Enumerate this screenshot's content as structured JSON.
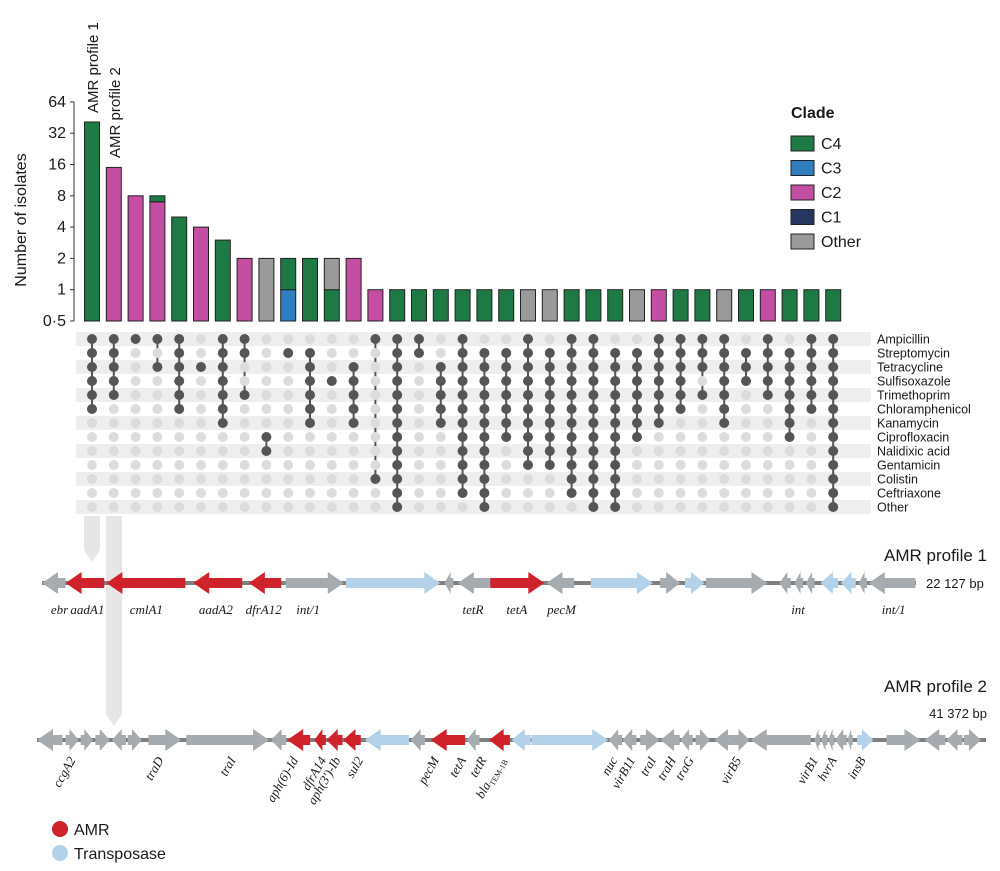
{
  "colors": {
    "C4": "#1e7a45",
    "C3": "#2f7fc0",
    "C2": "#c44fa2",
    "C1": "#263661",
    "Other": "#9a9a9a",
    "dot_on": "#555555",
    "dot_off": "#dcdcdc",
    "band": "#eeeeee",
    "amr": "#d0222b",
    "transposase": "#b3d2ea",
    "gene_gray": "#a6abaf",
    "backbone": "#7f7f7f"
  },
  "chart_data": {
    "type": "upset-bar",
    "ylabel": "Number of isolates",
    "y_scale": "log2",
    "ylim": [
      0.5,
      64
    ],
    "yticks": [
      "0·5",
      "1",
      "2",
      "4",
      "8",
      "16",
      "32",
      "64"
    ],
    "ytick_values": [
      0.5,
      1,
      2,
      4,
      8,
      16,
      32,
      64
    ],
    "profile_labels": [
      "AMR profile 1",
      "AMR profile 2"
    ],
    "categories": [
      "Ampicillin",
      "Streptomycin",
      "Tetracycline",
      "Sulfisoxazole",
      "Trimethoprim",
      "Chloramphenicol",
      "Kanamycin",
      "Ciprofloxacin",
      "Nalidixic acid",
      "Gentamicin",
      "Colistin",
      "Ceftriaxone",
      "Other"
    ],
    "bars": [
      {
        "segments": [
          [
            "C4",
            41
          ]
        ],
        "set": [
          0,
          1,
          2,
          3,
          4,
          5
        ]
      },
      {
        "segments": [
          [
            "C2",
            15
          ]
        ],
        "set": [
          0,
          1,
          2,
          3,
          4
        ]
      },
      {
        "segments": [
          [
            "C2",
            8
          ]
        ],
        "set": [
          0
        ]
      },
      {
        "segments": [
          [
            "C2",
            7
          ],
          [
            "C4",
            1
          ]
        ],
        "set": [
          0,
          2
        ]
      },
      {
        "segments": [
          [
            "C4",
            5
          ]
        ],
        "set": [
          0,
          1,
          2,
          3,
          4,
          5
        ]
      },
      {
        "segments": [
          [
            "C2",
            4
          ]
        ],
        "set": [
          2
        ]
      },
      {
        "segments": [
          [
            "C4",
            3
          ]
        ],
        "set": [
          0,
          1,
          2,
          3,
          4,
          5,
          6
        ]
      },
      {
        "segments": [
          [
            "C2",
            2
          ]
        ],
        "set": [
          0,
          1,
          4
        ]
      },
      {
        "segments": [
          [
            "Other",
            2
          ]
        ],
        "set": [
          7,
          8
        ]
      },
      {
        "segments": [
          [
            "C3",
            1
          ],
          [
            "C4",
            1
          ]
        ],
        "set": [
          1
        ]
      },
      {
        "segments": [
          [
            "C4",
            2
          ]
        ],
        "set": [
          1,
          2,
          3,
          4,
          5,
          6
        ]
      },
      {
        "segments": [
          [
            "C4",
            1
          ],
          [
            "Other",
            1
          ]
        ],
        "set": [
          3
        ]
      },
      {
        "segments": [
          [
            "C2",
            2
          ]
        ],
        "set": [
          2,
          3,
          4,
          5,
          6
        ]
      },
      {
        "segments": [
          [
            "C2",
            1
          ]
        ],
        "set": [
          0,
          10
        ]
      },
      {
        "segments": [
          [
            "C4",
            1
          ]
        ],
        "set": [
          0,
          1,
          2,
          3,
          4,
          5,
          6,
          7,
          8,
          9,
          10,
          11,
          12
        ]
      },
      {
        "segments": [
          [
            "C4",
            1
          ]
        ],
        "set": [
          0,
          1
        ]
      },
      {
        "segments": [
          [
            "C4",
            1
          ]
        ],
        "set": [
          2,
          3,
          4,
          5,
          6
        ]
      },
      {
        "segments": [
          [
            "C4",
            1
          ]
        ],
        "set": [
          0,
          1,
          2,
          3,
          4,
          5,
          6,
          7,
          8,
          9,
          10,
          11
        ]
      },
      {
        "segments": [
          [
            "C4",
            1
          ]
        ],
        "set": [
          1,
          2,
          3,
          4,
          5,
          6,
          7,
          8,
          9,
          10,
          11,
          12
        ]
      },
      {
        "segments": [
          [
            "C4",
            1
          ]
        ],
        "set": [
          1,
          2,
          3,
          4,
          5,
          6,
          7
        ]
      },
      {
        "segments": [
          [
            "Other",
            1
          ]
        ],
        "set": [
          0,
          1,
          2,
          3,
          4,
          5,
          6,
          7,
          8,
          9
        ]
      },
      {
        "segments": [
          [
            "Other",
            1
          ]
        ],
        "set": [
          1,
          2,
          3,
          4,
          5,
          6,
          7,
          8,
          9
        ]
      },
      {
        "segments": [
          [
            "C4",
            1
          ]
        ],
        "set": [
          0,
          1,
          2,
          3,
          4,
          5,
          6,
          7,
          8,
          9,
          10,
          11
        ]
      },
      {
        "segments": [
          [
            "C4",
            1
          ]
        ],
        "set": [
          0,
          1,
          2,
          3,
          4,
          5,
          6,
          7,
          8,
          9,
          10,
          11,
          12
        ]
      },
      {
        "segments": [
          [
            "C4",
            1
          ]
        ],
        "set": [
          1,
          2,
          3,
          4,
          5,
          6,
          7,
          8,
          9,
          10,
          11,
          12
        ]
      },
      {
        "segments": [
          [
            "Other",
            1
          ]
        ],
        "set": [
          1,
          2,
          3,
          4,
          5,
          6,
          7
        ]
      },
      {
        "segments": [
          [
            "C2",
            1
          ]
        ],
        "set": [
          0,
          1,
          2,
          3,
          4,
          5,
          6
        ]
      },
      {
        "segments": [
          [
            "C4",
            1
          ]
        ],
        "set": [
          0,
          1,
          2,
          3,
          4,
          5
        ]
      },
      {
        "segments": [
          [
            "C4",
            1
          ]
        ],
        "set": [
          0,
          1,
          2,
          4
        ]
      },
      {
        "segments": [
          [
            "Other",
            1
          ]
        ],
        "set": [
          0,
          1,
          2,
          3,
          4,
          5,
          6
        ]
      },
      {
        "segments": [
          [
            "C4",
            1
          ]
        ],
        "set": [
          1,
          2,
          3
        ]
      },
      {
        "segments": [
          [
            "C2",
            1
          ]
        ],
        "set": [
          0,
          1,
          2,
          3,
          4
        ]
      },
      {
        "segments": [
          [
            "C4",
            1
          ]
        ],
        "set": [
          1,
          2,
          3,
          4,
          5,
          6,
          7
        ]
      },
      {
        "segments": [
          [
            "C4",
            1
          ]
        ],
        "set": [
          0,
          1,
          2,
          3,
          4,
          5
        ]
      },
      {
        "segments": [
          [
            "C4",
            1
          ]
        ],
        "set": [
          0,
          1,
          2,
          3,
          4,
          5,
          6,
          7,
          8,
          9,
          10,
          11,
          12
        ]
      }
    ],
    "legend": {
      "title": "Clade",
      "position": "top-right",
      "entries": [
        "C4",
        "C3",
        "C2",
        "C1",
        "Other"
      ]
    }
  },
  "maps": {
    "profile1": {
      "title": "AMR profile 1",
      "length_label": "22 127 bp",
      "length_bp": 22127,
      "genes": [
        {
          "start": 0,
          "end": 780,
          "dir": -1,
          "type": "gene"
        },
        {
          "start": 780,
          "end": 2060,
          "dir": -1,
          "type": "amr"
        },
        {
          "start": 2130,
          "end": 4740,
          "dir": -1,
          "type": "amr"
        },
        {
          "start": 5000,
          "end": 6620,
          "dir": -1,
          "type": "amr"
        },
        {
          "start": 6840,
          "end": 7910,
          "dir": -1,
          "type": "amr"
        },
        {
          "start": 8060,
          "end": 9980,
          "dir": 1,
          "type": "gene"
        },
        {
          "start": 10050,
          "end": 13170,
          "dir": 1,
          "type": "transposase"
        },
        {
          "start": 13310,
          "end": 13600,
          "dir": -1,
          "type": "gene"
        },
        {
          "start": 13750,
          "end": 14820,
          "dir": -1,
          "type": "gene"
        },
        {
          "start": 14820,
          "end": 16610,
          "dir": 1,
          "type": "amr"
        },
        {
          "start": 16680,
          "end": 17590,
          "dir": -1,
          "type": "gene"
        },
        {
          "start": 18150,
          "end": 20200,
          "dir": 1,
          "type": "transposase"
        },
        {
          "start": 20440,
          "end": 21100,
          "dir": 1,
          "type": "gene"
        },
        {
          "start": 21260,
          "end": 21910,
          "dir": 1,
          "type": "transposase"
        },
        {
          "start": 21960,
          "end": 23990,
          "dir": 1,
          "type": "gene"
        },
        {
          "start": 24380,
          "end": 24760,
          "dir": -1,
          "type": "gene"
        },
        {
          "start": 24880,
          "end": 25170,
          "dir": -1,
          "type": "gene"
        },
        {
          "start": 25260,
          "end": 25550,
          "dir": -1,
          "type": "gene"
        },
        {
          "start": 25740,
          "end": 26330,
          "dir": -1,
          "type": "transposase"
        },
        {
          "start": 26420,
          "end": 26910,
          "dir": -1,
          "type": "transposase"
        },
        {
          "start": 27010,
          "end": 27280,
          "dir": -1,
          "type": "gene"
        },
        {
          "start": 27340,
          "end": 28880,
          "dir": -1,
          "type": "gene"
        }
      ],
      "labels": [
        {
          "text": "ebr",
          "pos": 580
        },
        {
          "text": "aadA1",
          "pos": 1500
        },
        {
          "text": "cmlA1",
          "pos": 3450
        },
        {
          "text": "aadA2",
          "pos": 5750
        },
        {
          "text": "dfrA12",
          "pos": 7330
        },
        {
          "text": "int/1",
          "pos": 8800
        },
        {
          "text": "tetR",
          "pos": 14250
        },
        {
          "text": "tetA",
          "pos": 15700
        },
        {
          "text": "pecM",
          "pos": 17180
        },
        {
          "text": "int",
          "pos": 25000
        },
        {
          "text": "int/1",
          "pos": 28160
        }
      ]
    },
    "profile2": {
      "title": "AMR profile 2",
      "length_label": "41 372 bp",
      "length_bp": 41372,
      "genes": [
        {
          "start": 0,
          "end": 1280,
          "dir": -1,
          "type": "gene"
        },
        {
          "start": 1440,
          "end": 2100,
          "dir": 1,
          "type": "gene"
        },
        {
          "start": 2200,
          "end": 2820,
          "dir": 1,
          "type": "gene"
        },
        {
          "start": 2940,
          "end": 3670,
          "dir": 1,
          "type": "gene"
        },
        {
          "start": 3770,
          "end": 4480,
          "dir": -1,
          "type": "gene"
        },
        {
          "start": 4570,
          "end": 5280,
          "dir": 1,
          "type": "gene"
        },
        {
          "start": 5610,
          "end": 7270,
          "dir": 1,
          "type": "gene"
        },
        {
          "start": 7520,
          "end": 11690,
          "dir": 1,
          "type": "gene"
        },
        {
          "start": 11790,
          "end": 12550,
          "dir": -1,
          "type": "gene"
        },
        {
          "start": 12600,
          "end": 13760,
          "dir": -1,
          "type": "amr"
        },
        {
          "start": 13970,
          "end": 14550,
          "dir": -1,
          "type": "amr"
        },
        {
          "start": 14580,
          "end": 15390,
          "dir": -1,
          "type": "amr"
        },
        {
          "start": 15420,
          "end": 16310,
          "dir": -1,
          "type": "amr"
        },
        {
          "start": 16510,
          "end": 18740,
          "dir": -1,
          "type": "transposase"
        },
        {
          "start": 18820,
          "end": 19540,
          "dir": -1,
          "type": "gene"
        },
        {
          "start": 19830,
          "end": 21560,
          "dir": -1,
          "type": "amr"
        },
        {
          "start": 21640,
          "end": 22290,
          "dir": -1,
          "type": "gene"
        },
        {
          "start": 22770,
          "end": 23820,
          "dir": -1,
          "type": "amr"
        },
        {
          "start": 23900,
          "end": 24860,
          "dir": -1,
          "type": "transposase"
        },
        {
          "start": 24900,
          "end": 28770,
          "dir": 1,
          "type": "transposase"
        },
        {
          "start": 28820,
          "end": 29470,
          "dir": -1,
          "type": "gene"
        },
        {
          "start": 29490,
          "end": 30190,
          "dir": -1,
          "type": "gene"
        },
        {
          "start": 30380,
          "end": 31360,
          "dir": 1,
          "type": "gene"
        },
        {
          "start": 31410,
          "end": 32380,
          "dir": -1,
          "type": "gene"
        },
        {
          "start": 32410,
          "end": 33030,
          "dir": -1,
          "type": "gene"
        },
        {
          "start": 33180,
          "end": 33900,
          "dir": 1,
          "type": "gene"
        },
        {
          "start": 34120,
          "end": 35100,
          "dir": -1,
          "type": "gene"
        },
        {
          "start": 35100,
          "end": 35890,
          "dir": 1,
          "type": "gene"
        },
        {
          "start": 35950,
          "end": 38980,
          "dir": -1,
          "type": "gene"
        },
        {
          "start": 39160,
          "end": 39450,
          "dir": -1,
          "type": "gene"
        },
        {
          "start": 39490,
          "end": 39820,
          "dir": -1,
          "type": "gene"
        },
        {
          "start": 39850,
          "end": 40170,
          "dir": -1,
          "type": "gene"
        },
        {
          "start": 40200,
          "end": 40790,
          "dir": -1,
          "type": "gene"
        },
        {
          "start": 40820,
          "end": 41090,
          "dir": -1,
          "type": "gene"
        },
        {
          "start": 41310,
          "end": 42120,
          "dir": 1,
          "type": "transposase"
        },
        {
          "start": 42790,
          "end": 44500,
          "dir": 1,
          "type": "gene"
        },
        {
          "start": 44710,
          "end": 45760,
          "dir": -1,
          "type": "gene"
        },
        {
          "start": 45810,
          "end": 46610,
          "dir": -1,
          "type": "gene"
        },
        {
          "start": 46690,
          "end": 47550,
          "dir": 1,
          "type": "gene"
        }
      ],
      "labels": [
        {
          "text": "ccgA2",
          "pos": 1760
        },
        {
          "text": "traD",
          "pos": 6200
        },
        {
          "text": "traI",
          "pos": 9830
        },
        {
          "text": "aph(6)-Id",
          "pos": 12970
        },
        {
          "text": "dfrA14",
          "pos": 14390
        },
        {
          "text": "aph(3ʹ)-Ib",
          "pos": 15110
        },
        {
          "text": "sul2",
          "pos": 16250
        },
        {
          "text": "pecM",
          "pos": 20070
        },
        {
          "text": "tetA",
          "pos": 21430
        },
        {
          "text": "tetR",
          "pos": 22450
        },
        {
          "text": "bla",
          "pos": 23400,
          "sub": "TEM-1B"
        },
        {
          "text": "nuc",
          "pos": 29050
        },
        {
          "text": "virB11",
          "pos": 29950
        },
        {
          "text": "traI",
          "pos": 31000
        },
        {
          "text": "traH",
          "pos": 32000
        },
        {
          "text": "traG",
          "pos": 32900
        },
        {
          "text": "virB5",
          "pos": 35300
        },
        {
          "text": "virB1",
          "pos": 39160
        },
        {
          "text": "hvrA",
          "pos": 40100
        },
        {
          "text": "insB",
          "pos": 41560
        }
      ]
    },
    "legend": {
      "amr": "AMR",
      "transposase": "Transposase"
    }
  }
}
